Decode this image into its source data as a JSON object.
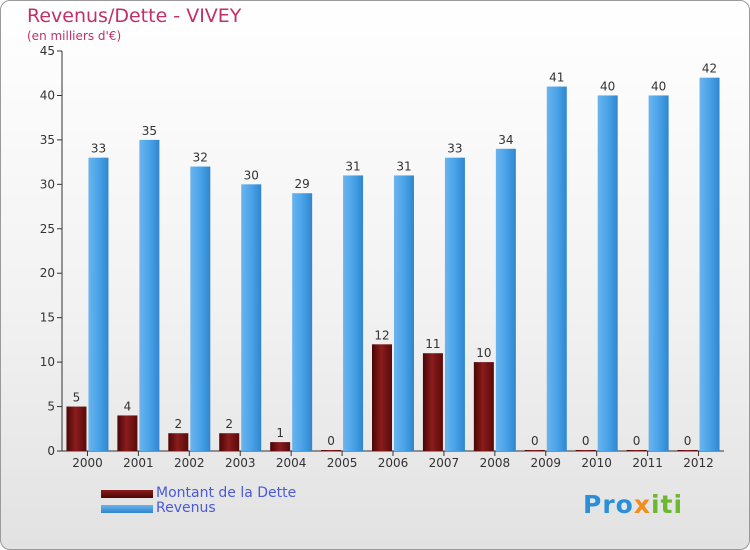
{
  "title": "Revenus/Dette - VIVEY",
  "subtitle": "(en milliers d'€)",
  "colors": {
    "dette": "#6b0f0f",
    "revenus": "#3d9ae2",
    "title": "#c0306a",
    "legend_text": "#4a5ad8"
  },
  "brand": {
    "part1": "Pro",
    "part2": "x",
    "part3": "iti"
  },
  "chart_data": {
    "type": "bar",
    "categories": [
      "2000",
      "2001",
      "2002",
      "2003",
      "2004",
      "2005",
      "2006",
      "2007",
      "2008",
      "2009",
      "2010",
      "2011",
      "2012"
    ],
    "series": [
      {
        "name": "Montant de la Dette",
        "values": [
          5,
          4,
          2,
          2,
          1,
          0,
          12,
          11,
          10,
          0,
          0,
          0,
          0
        ]
      },
      {
        "name": "Revenus",
        "values": [
          33,
          35,
          32,
          30,
          29,
          31,
          31,
          33,
          34,
          41,
          40,
          40,
          42
        ]
      }
    ],
    "title": "Revenus/Dette - VIVEY",
    "subtitle": "(en milliers d'€)",
    "xlabel": "",
    "ylabel": "",
    "ylim": [
      0,
      45
    ],
    "yticks": [
      0,
      5,
      10,
      15,
      20,
      25,
      30,
      35,
      40,
      45
    ],
    "grid": false,
    "legend": "bottom-left"
  }
}
